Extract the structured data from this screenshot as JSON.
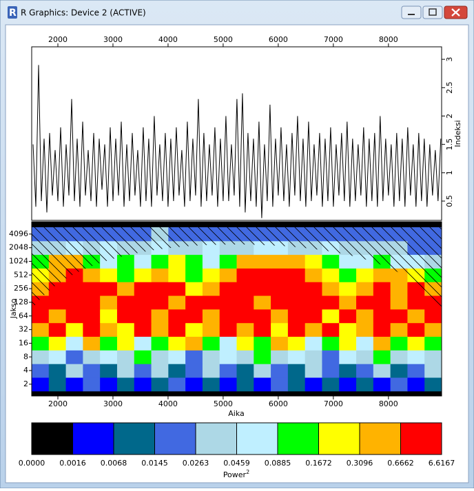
{
  "window": {
    "title": "R Graphics: Device 2 (ACTIVE)"
  },
  "chart_data": [
    {
      "type": "line",
      "ylabel": "Indeksi",
      "color": "#000000",
      "xlim": [
        1525,
        8965
      ],
      "xticks": [
        2000,
        3000,
        4000,
        5000,
        6000,
        7000,
        8000
      ],
      "ylim": [
        0.16,
        3.22
      ],
      "yticks": [
        0.5,
        1.0,
        1.5,
        2.0,
        2.5,
        3.0
      ],
      "x": [
        1550,
        1600,
        1650,
        1700,
        1750,
        1800,
        1850,
        1900,
        1950,
        2000,
        2050,
        2100,
        2150,
        2200,
        2250,
        2300,
        2350,
        2400,
        2450,
        2500,
        2550,
        2600,
        2650,
        2700,
        2750,
        2800,
        2850,
        2900,
        2950,
        3000,
        3050,
        3100,
        3150,
        3200,
        3250,
        3300,
        3350,
        3400,
        3450,
        3500,
        3550,
        3600,
        3650,
        3700,
        3750,
        3800,
        3850,
        3900,
        3950,
        4000,
        4050,
        4100,
        4150,
        4200,
        4250,
        4300,
        4350,
        4400,
        4450,
        4500,
        4550,
        4600,
        4650,
        4700,
        4750,
        4800,
        4850,
        4900,
        4950,
        5000,
        5050,
        5100,
        5150,
        5200,
        5250,
        5300,
        5350,
        5400,
        5450,
        5500,
        5550,
        5600,
        5650,
        5700,
        5750,
        5800,
        5850,
        5900,
        5950,
        6000,
        6050,
        6100,
        6150,
        6200,
        6250,
        6300,
        6350,
        6400,
        6450,
        6500,
        6550,
        6600,
        6650,
        6700,
        6750,
        6800,
        6850,
        6900,
        6950,
        7000,
        7050,
        7100,
        7150,
        7200,
        7250,
        7300,
        7350,
        7400,
        7450,
        7500,
        7550,
        7600,
        7650,
        7700,
        7750,
        7800,
        7850,
        7900,
        7950,
        8000,
        8050,
        8100,
        8150,
        8200,
        8250,
        8300,
        8350,
        8400,
        8450,
        8500,
        8550,
        8600,
        8650,
        8700,
        8750,
        8800,
        8850,
        8900,
        8950
      ],
      "values": [
        1.5,
        0.4,
        2.9,
        0.5,
        1.6,
        0.3,
        1.7,
        0.6,
        1.4,
        0.5,
        1.8,
        0.4,
        1.5,
        0.6,
        2.3,
        0.5,
        1.6,
        0.4,
        1.9,
        0.6,
        1.4,
        0.5,
        1.7,
        0.4,
        1.6,
        0.7,
        1.5,
        0.4,
        1.8,
        0.5,
        1.6,
        0.6,
        1.9,
        0.4,
        1.5,
        0.5,
        1.7,
        0.6,
        1.4,
        0.4,
        1.8,
        0.5,
        1.6,
        0.4,
        2.0,
        0.6,
        1.5,
        0.5,
        1.7,
        0.4,
        1.6,
        0.5,
        1.8,
        0.6,
        1.4,
        0.4,
        1.9,
        0.5,
        1.6,
        0.6,
        2.3,
        0.4,
        1.7,
        0.5,
        1.5,
        0.6,
        1.8,
        0.4,
        1.6,
        0.5,
        2.0,
        0.5,
        1.5,
        0.6,
        2.3,
        0.4,
        2.4,
        0.3,
        1.7,
        0.5,
        1.6,
        0.4,
        1.9,
        0.2,
        1.5,
        0.5,
        2.2,
        0.4,
        1.6,
        0.6,
        1.8,
        0.5,
        1.5,
        0.4,
        1.7,
        0.6,
        2.0,
        0.5,
        1.6,
        0.4,
        1.9,
        0.5,
        1.5,
        0.6,
        1.7,
        0.4,
        1.6,
        0.5,
        1.8,
        0.4,
        1.5,
        0.6,
        1.7,
        0.5,
        1.9,
        0.4,
        1.6,
        0.5,
        1.5,
        0.6,
        1.8,
        0.4,
        1.6,
        0.5,
        1.7,
        0.4,
        2.0,
        0.5,
        1.6,
        0.6,
        1.5,
        0.4,
        1.7,
        0.5,
        1.6,
        0.4,
        1.8,
        0.6,
        1.5,
        0.4,
        1.7,
        0.5,
        1.6,
        0.4,
        1.5,
        0.6,
        1.4,
        0.5,
        1.6
      ]
    },
    {
      "type": "heatmap",
      "xlabel": "Aika",
      "ylabel": "Jakso",
      "log_y": true,
      "xlim": [
        1525,
        8965
      ],
      "xticks": [
        2000,
        3000,
        4000,
        5000,
        6000,
        7000,
        8000
      ],
      "ylim": [
        1.1,
        7650
      ],
      "yticks": [
        2,
        4,
        8,
        16,
        32,
        64,
        128,
        256,
        512,
        1024,
        2048,
        4096
      ],
      "x_edges": [
        1525,
        1835,
        2145,
        2455,
        2765,
        3075,
        3385,
        3695,
        4005,
        4315,
        4625,
        4935,
        5245,
        5555,
        5865,
        6175,
        6485,
        6795,
        7105,
        7415,
        7725,
        8035,
        8345,
        8655,
        8965
      ],
      "periods": [
        2,
        4,
        8,
        16,
        32,
        64,
        128,
        256,
        512,
        1024,
        2048,
        4096
      ],
      "z": [
        [
          1,
          2,
          1,
          3,
          1,
          2,
          1,
          2,
          3,
          1,
          2,
          1,
          2,
          1,
          3,
          2,
          1,
          2,
          1,
          2,
          1,
          3,
          1,
          2
        ],
        [
          3,
          2,
          4,
          3,
          2,
          4,
          3,
          4,
          2,
          3,
          4,
          3,
          2,
          4,
          3,
          2,
          4,
          3,
          2,
          3,
          4,
          2,
          3,
          4
        ],
        [
          4,
          5,
          3,
          4,
          5,
          4,
          6,
          4,
          5,
          3,
          4,
          5,
          4,
          6,
          4,
          5,
          4,
          3,
          5,
          4,
          6,
          4,
          5,
          4
        ],
        [
          6,
          7,
          5,
          8,
          6,
          7,
          5,
          6,
          7,
          8,
          6,
          5,
          7,
          6,
          8,
          7,
          5,
          6,
          7,
          5,
          8,
          6,
          7,
          6
        ],
        [
          8,
          9,
          7,
          9,
          8,
          7,
          9,
          8,
          9,
          7,
          8,
          9,
          8,
          9,
          7,
          9,
          8,
          9,
          7,
          8,
          9,
          8,
          9,
          8
        ],
        [
          9,
          8,
          9,
          9,
          7,
          9,
          9,
          8,
          9,
          9,
          8,
          9,
          9,
          9,
          8,
          9,
          9,
          7,
          9,
          8,
          9,
          9,
          8,
          9
        ],
        [
          9,
          9,
          9,
          9,
          8,
          9,
          9,
          9,
          8,
          9,
          9,
          9,
          9,
          8,
          9,
          9,
          9,
          9,
          8,
          9,
          9,
          8,
          9,
          9
        ],
        [
          8,
          9,
          9,
          9,
          9,
          8,
          9,
          9,
          9,
          7,
          8,
          9,
          9,
          9,
          9,
          9,
          9,
          8,
          7,
          8,
          9,
          8,
          9,
          8
        ],
        [
          7,
          8,
          9,
          8,
          7,
          6,
          7,
          8,
          7,
          6,
          7,
          8,
          9,
          9,
          9,
          9,
          8,
          7,
          6,
          7,
          8,
          8,
          7,
          6
        ],
        [
          6,
          8,
          8,
          6,
          5,
          6,
          5,
          6,
          7,
          6,
          5,
          6,
          8,
          8,
          8,
          8,
          7,
          6,
          5,
          5,
          6,
          5,
          5,
          4
        ],
        [
          4,
          4,
          5,
          4,
          5,
          4,
          4,
          5,
          4,
          4,
          5,
          4,
          4,
          5,
          5,
          4,
          4,
          5,
          4,
          4,
          4,
          4,
          3,
          3
        ],
        [
          3,
          3,
          3,
          3,
          3,
          3,
          3,
          4,
          3,
          3,
          3,
          3,
          3,
          3,
          3,
          3,
          3,
          3,
          3,
          3,
          3,
          3,
          3,
          3
        ]
      ],
      "legend": {
        "label": "Power",
        "label_sup": "2",
        "colors": [
          "#000000",
          "#0000ff",
          "#00688b",
          "#4169e1",
          "#add8e6",
          "#bfefff",
          "#00ff00",
          "#ffff00",
          "#ffb300",
          "#ff0000"
        ],
        "breaks": [
          {
            "value": 0,
            "label": "0.0000"
          },
          0.0016,
          0.0068,
          0.0145,
          0.0263,
          0.0459,
          0.0885,
          0.1672,
          0.3096,
          0.6662,
          6.6167
        ]
      }
    }
  ]
}
